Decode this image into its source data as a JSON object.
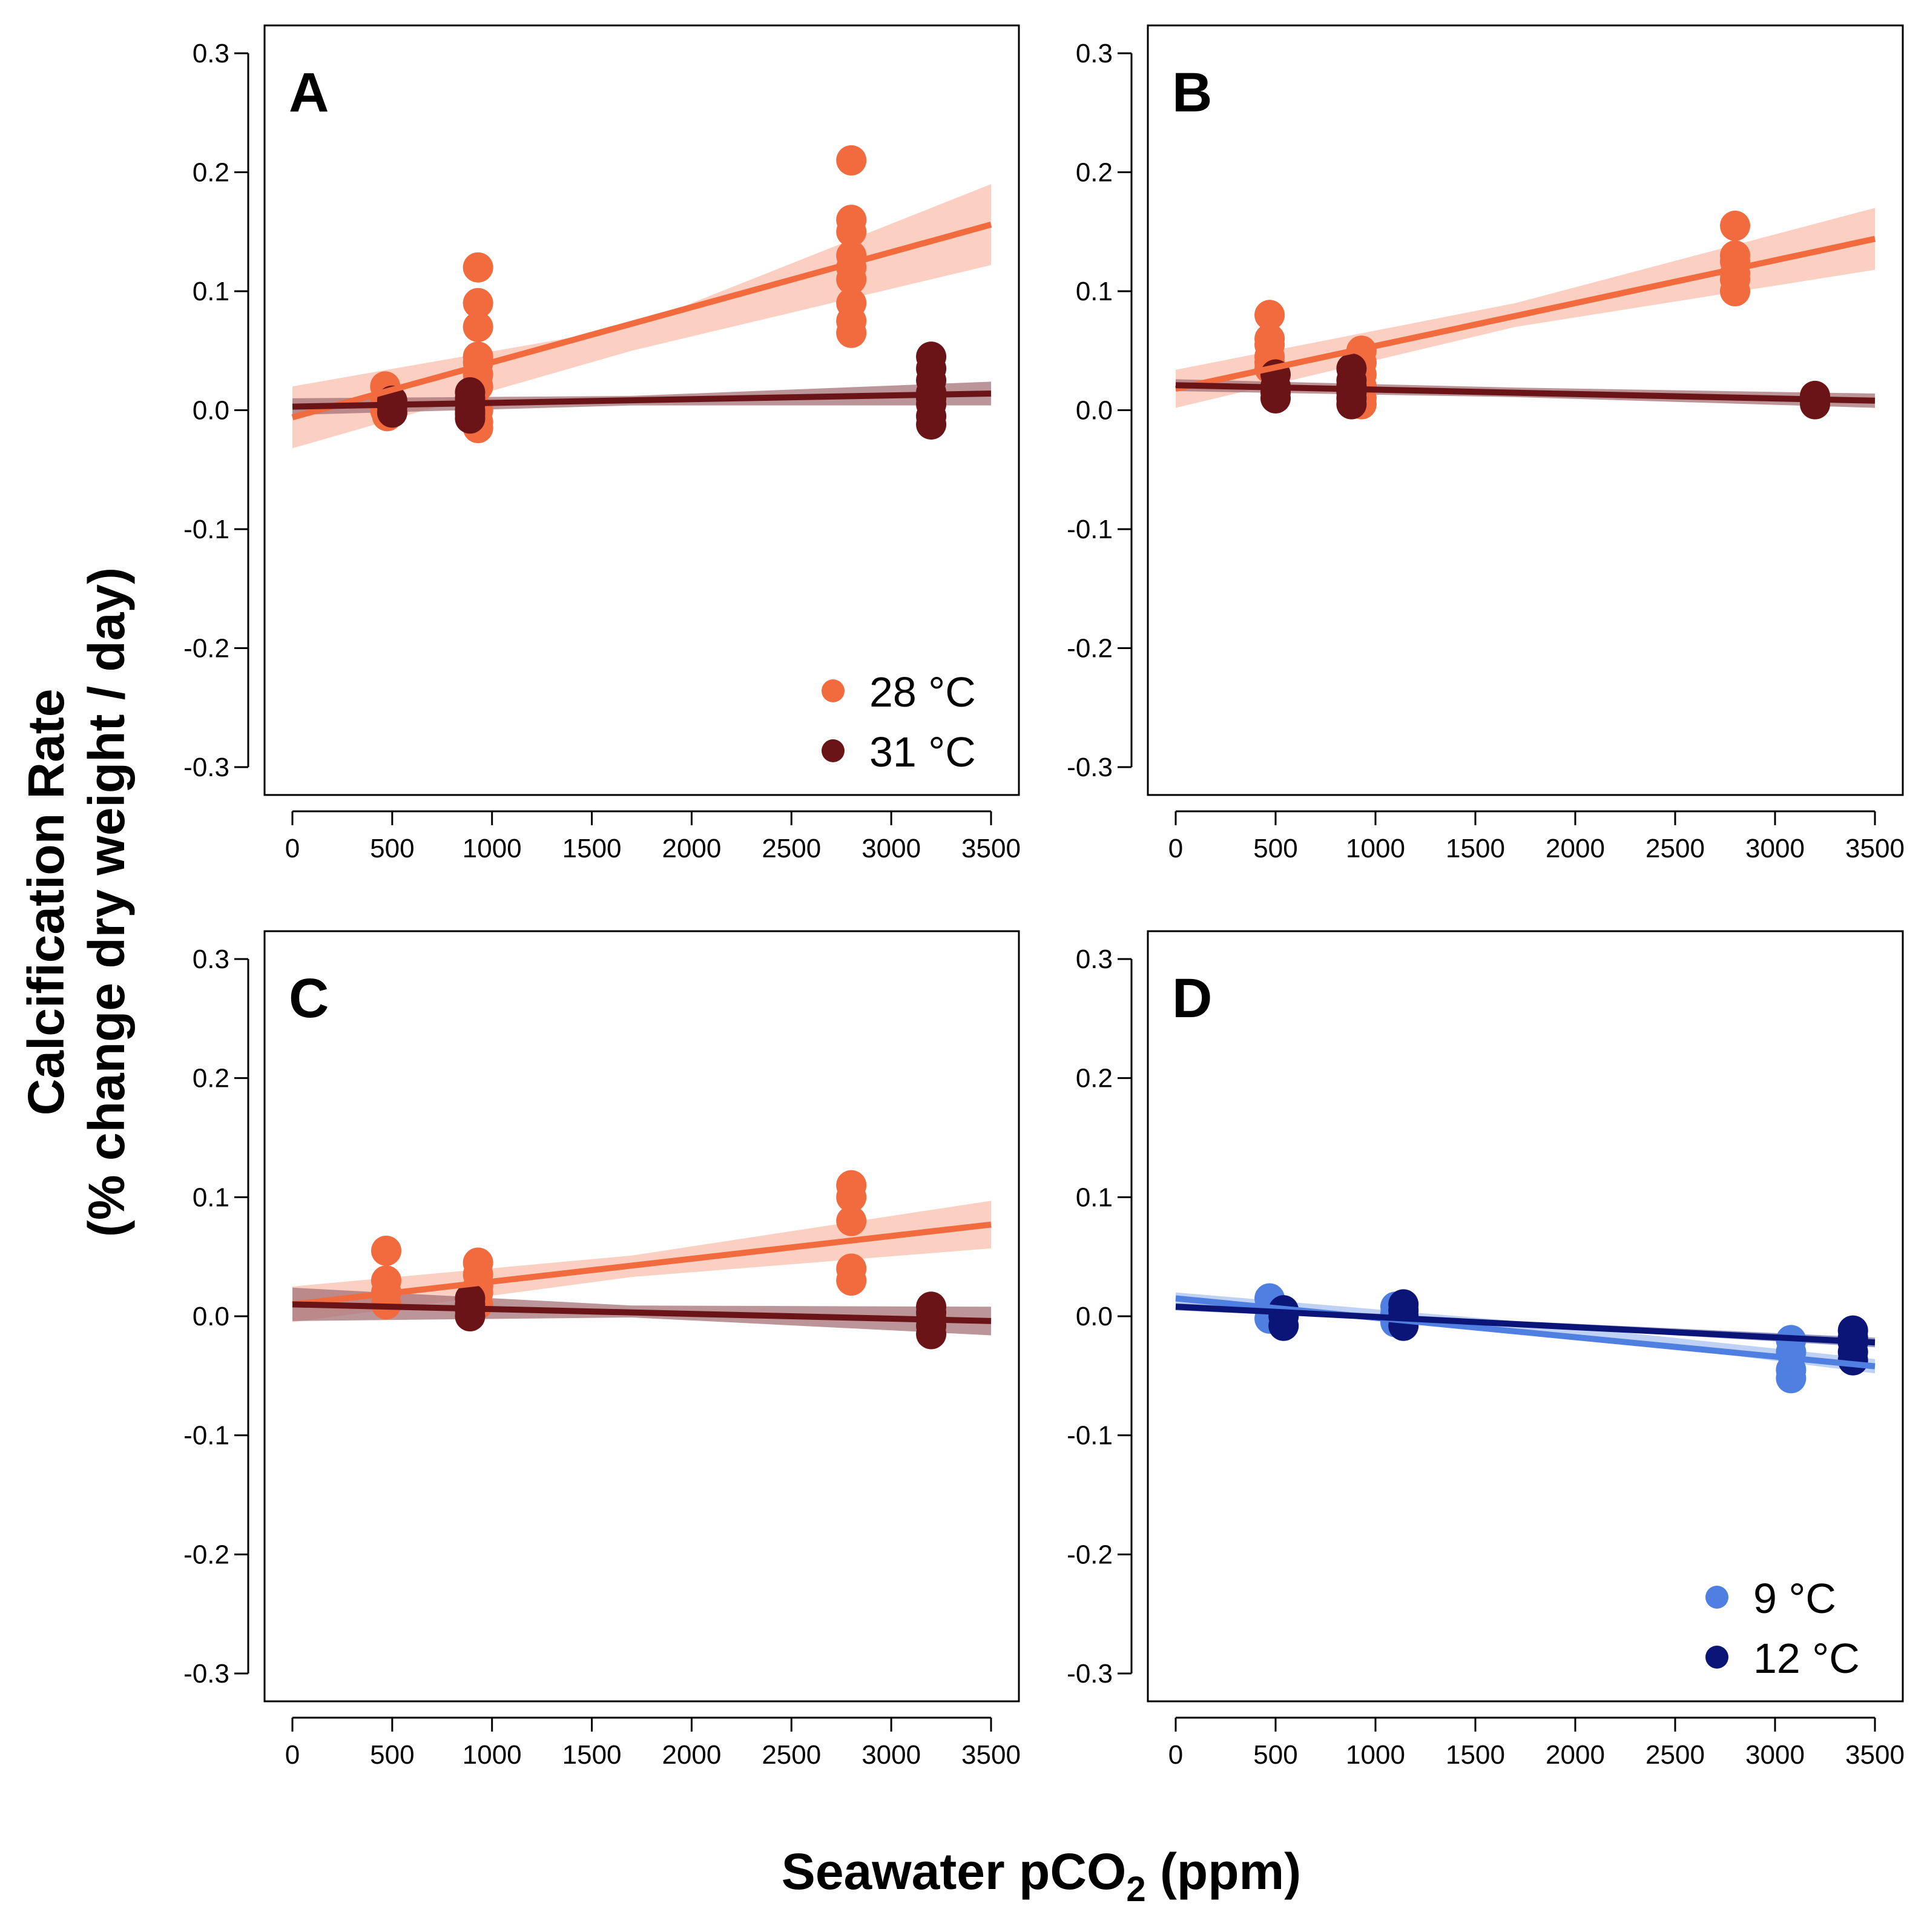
{
  "figure": {
    "ylabel_line1": "Calcification Rate",
    "ylabel_line2": "(% change dry weight / day)",
    "xlabel_main": "Seawater pCO",
    "xlabel_sub": "2",
    "xlabel_tail": " (ppm)"
  },
  "chart_data": [
    {
      "type": "scatter",
      "panel": "A",
      "title": "A",
      "xlim": [
        0,
        3500
      ],
      "ylim": [
        -0.3,
        0.3
      ],
      "xticks": [
        "0",
        "500",
        "1000",
        "1500",
        "2000",
        "2500",
        "3000",
        "3500"
      ],
      "yticks": [
        "-0.3",
        "-0.2",
        "-0.1",
        "0.0",
        "0.1",
        "0.2",
        "0.3"
      ],
      "legend": [
        {
          "label": "28 °C",
          "color": "#f26b3f"
        },
        {
          "label": "31 °C",
          "color": "#6b1418"
        }
      ],
      "series": [
        {
          "name": "28 °C",
          "color": "#f26b3f",
          "band_color": "#f9bfae",
          "x": [
            465,
            465,
            465,
            475,
            930,
            930,
            930,
            930,
            930,
            930,
            930,
            930,
            930,
            930,
            2800,
            2800,
            2800,
            2800,
            2800,
            2800,
            2800,
            2800,
            2800
          ],
          "y": [
            0.02,
            0.01,
            0.0,
            -0.005,
            0.12,
            0.09,
            0.07,
            0.045,
            0.04,
            0.03,
            0.02,
            0.0,
            -0.01,
            -0.015,
            0.21,
            0.16,
            0.15,
            0.13,
            0.12,
            0.11,
            0.09,
            0.075,
            0.065
          ],
          "fit": [
            [
              0,
              -0.006
            ],
            [
              3500,
              0.156
            ]
          ],
          "band": [
            [
              0,
              -0.032,
              0.02
            ],
            [
              1700,
              0.05,
              0.07
            ],
            [
              3500,
              0.122,
              0.19
            ]
          ]
        },
        {
          "name": "31 °C",
          "color": "#6b1418",
          "band_color": "#a57175",
          "x": [
            500,
            500,
            500,
            890,
            890,
            890,
            890,
            890,
            890,
            3200,
            3200,
            3200,
            3200,
            3200,
            3200,
            3200,
            3200
          ],
          "y": [
            0.008,
            0.003,
            -0.002,
            0.015,
            0.01,
            0.005,
            0.0,
            -0.003,
            -0.007,
            0.045,
            0.035,
            0.025,
            0.015,
            0.01,
            0.005,
            -0.005,
            -0.012
          ],
          "fit": [
            [
              0,
              0.003
            ],
            [
              3500,
              0.014
            ]
          ],
          "band": [
            [
              0,
              -0.004,
              0.01
            ],
            [
              1700,
              0.004,
              0.012
            ],
            [
              3500,
              0.004,
              0.024
            ]
          ]
        }
      ]
    },
    {
      "type": "scatter",
      "panel": "B",
      "title": "B",
      "xlim": [
        0,
        3500
      ],
      "ylim": [
        -0.3,
        0.3
      ],
      "xticks": [
        "0",
        "500",
        "1000",
        "1500",
        "2000",
        "2500",
        "3000",
        "3500"
      ],
      "yticks": [
        "-0.3",
        "-0.2",
        "-0.1",
        "0.0",
        "0.1",
        "0.2",
        "0.3"
      ],
      "legend": [],
      "series": [
        {
          "name": "28 °C",
          "color": "#f26b3f",
          "band_color": "#f9bfae",
          "x": [
            470,
            470,
            470,
            470,
            470,
            470,
            930,
            930,
            930,
            930,
            930,
            930,
            2800,
            2800,
            2800,
            2800,
            2800,
            2800
          ],
          "y": [
            0.08,
            0.06,
            0.055,
            0.045,
            0.04,
            0.035,
            0.05,
            0.04,
            0.03,
            0.02,
            0.01,
            0.005,
            0.155,
            0.13,
            0.125,
            0.115,
            0.11,
            0.1
          ],
          "fit": [
            [
              0,
              0.018
            ],
            [
              3500,
              0.144
            ]
          ],
          "band": [
            [
              0,
              0.002,
              0.034
            ],
            [
              1700,
              0.07,
              0.09
            ],
            [
              3500,
              0.118,
              0.17
            ]
          ]
        },
        {
          "name": "31 °C",
          "color": "#6b1418",
          "band_color": "#a57175",
          "x": [
            500,
            500,
            500,
            500,
            880,
            880,
            880,
            880,
            880,
            880,
            3200,
            3200,
            3200
          ],
          "y": [
            0.03,
            0.02,
            0.015,
            0.01,
            0.035,
            0.025,
            0.02,
            0.015,
            0.01,
            0.005,
            0.012,
            0.008,
            0.005
          ],
          "fit": [
            [
              0,
              0.021
            ],
            [
              3500,
              0.008
            ]
          ],
          "band": [
            [
              0,
              0.016,
              0.026
            ],
            [
              1700,
              0.011,
              0.019
            ],
            [
              3500,
              0.002,
              0.014
            ]
          ]
        }
      ]
    },
    {
      "type": "scatter",
      "panel": "C",
      "title": "C",
      "xlim": [
        0,
        3500
      ],
      "ylim": [
        -0.3,
        0.3
      ],
      "xticks": [
        "0",
        "500",
        "1000",
        "1500",
        "2000",
        "2500",
        "3000",
        "3500"
      ],
      "yticks": [
        "-0.3",
        "-0.2",
        "-0.1",
        "0.0",
        "0.1",
        "0.2",
        "0.3"
      ],
      "legend": [],
      "series": [
        {
          "name": "28 °C",
          "color": "#f26b3f",
          "band_color": "#f9bfae",
          "x": [
            470,
            470,
            470,
            470,
            930,
            930,
            930,
            930,
            930,
            2800,
            2800,
            2800,
            2800,
            2800
          ],
          "y": [
            0.055,
            0.03,
            0.02,
            0.01,
            0.045,
            0.035,
            0.025,
            0.02,
            0.01,
            0.11,
            0.1,
            0.08,
            0.04,
            0.03
          ],
          "fit": [
            [
              0,
              0.01
            ],
            [
              3500,
              0.077
            ]
          ],
          "band": [
            [
              0,
              -0.005,
              0.025
            ],
            [
              1700,
              0.033,
              0.051
            ],
            [
              3500,
              0.057,
              0.097
            ]
          ]
        },
        {
          "name": "31 °C",
          "color": "#6b1418",
          "band_color": "#a57175",
          "x": [
            890,
            890,
            890,
            890,
            3200,
            3200,
            3200,
            3200,
            3200
          ],
          "y": [
            0.015,
            0.01,
            0.005,
            0.0,
            0.008,
            0.003,
            -0.002,
            -0.008,
            -0.015
          ],
          "fit": [
            [
              0,
              0.01
            ],
            [
              3500,
              -0.004
            ]
          ],
          "band": [
            [
              0,
              -0.004,
              0.024
            ],
            [
              1700,
              -0.001,
              0.009
            ],
            [
              3500,
              -0.016,
              0.008
            ]
          ]
        }
      ]
    },
    {
      "type": "scatter",
      "panel": "D",
      "title": "D",
      "xlim": [
        0,
        3500
      ],
      "ylim": [
        -0.3,
        0.3
      ],
      "xticks": [
        "0",
        "500",
        "1000",
        "1500",
        "2000",
        "2500",
        "3000",
        "3500"
      ],
      "yticks": [
        "-0.3",
        "-0.2",
        "-0.1",
        "0.0",
        "0.1",
        "0.2",
        "0.3"
      ],
      "legend": [
        {
          "label": "9 °C",
          "color": "#4f7fe0"
        },
        {
          "label": "12 °C",
          "color": "#0a1577"
        }
      ],
      "series": [
        {
          "name": "9 °C",
          "color": "#4f7fe0",
          "band_color": "#a9c1f1",
          "x": [
            470,
            470,
            470,
            1100,
            1100,
            1100,
            3080,
            3080,
            3080,
            3080
          ],
          "y": [
            0.015,
            0.005,
            -0.002,
            0.008,
            0.002,
            -0.005,
            -0.02,
            -0.03,
            -0.045,
            -0.052
          ],
          "fit": [
            [
              0,
              0.015
            ],
            [
              3500,
              -0.042
            ]
          ],
          "band": [
            [
              0,
              0.01,
              0.02
            ],
            [
              1700,
              -0.01,
              -0.004
            ],
            [
              3500,
              -0.048,
              -0.036
            ]
          ]
        },
        {
          "name": "12 °C",
          "color": "#0a1577",
          "band_color": "#6d74b0",
          "x": [
            540,
            540,
            540,
            1140,
            1140,
            1140,
            1140,
            3390,
            3390,
            3390,
            3390,
            3390
          ],
          "y": [
            0.005,
            0.0,
            -0.008,
            0.01,
            0.005,
            0.0,
            -0.008,
            -0.012,
            -0.018,
            -0.022,
            -0.03,
            -0.037
          ],
          "fit": [
            [
              0,
              0.008
            ],
            [
              3500,
              -0.022
            ]
          ],
          "band": [
            [
              0,
              0.005,
              0.011
            ],
            [
              1700,
              -0.008,
              -0.004
            ],
            [
              3500,
              -0.026,
              -0.018
            ]
          ]
        }
      ]
    }
  ]
}
